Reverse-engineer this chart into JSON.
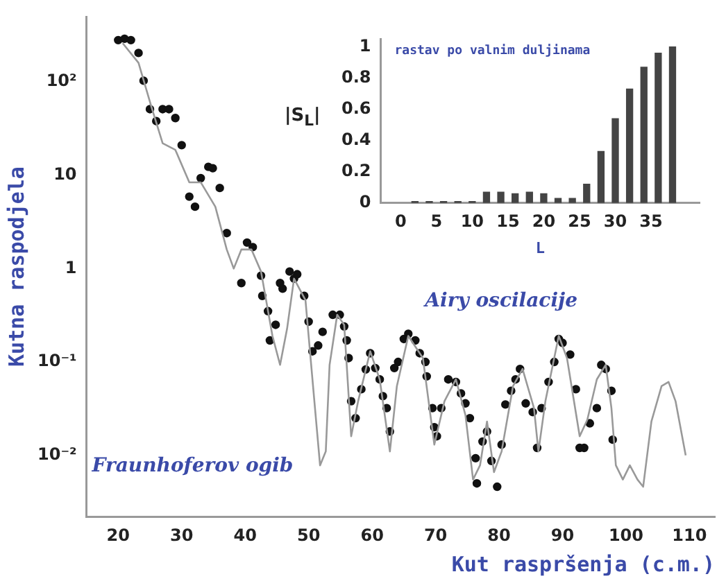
{
  "chart_data": [
    {
      "type": "scatter",
      "xlabel": "Kut raspršenja (c.m.)",
      "ylabel": "Kutna raspodjela",
      "log": "y",
      "grid": false,
      "legend": false,
      "xlim": [
        15,
        114
      ],
      "xticks": [
        20,
        30,
        40,
        50,
        60,
        70,
        80,
        90,
        100,
        110
      ],
      "ylim": [
        0.0022,
        500
      ],
      "yticks": [
        {
          "value": 100,
          "label": "10²"
        },
        {
          "value": 10,
          "label": "10"
        },
        {
          "value": 1,
          "label": "1"
        },
        {
          "value": 0.1,
          "label": "10⁻¹"
        },
        {
          "value": 0.01,
          "label": "10⁻²"
        }
      ],
      "annotations": [
        "Airy oscilacije",
        "Fraunhoferov ogib"
      ],
      "series": [
        {
          "type": "line",
          "color": "#999999",
          "marker": "none",
          "x": [
            20.7,
            23.2,
            25.2,
            27,
            29,
            31.2,
            33,
            35.3,
            37.1,
            38.2,
            39.4,
            41,
            42.5,
            44.3,
            45.5,
            46.6,
            47.7,
            49.5,
            51,
            51.8,
            52.7,
            53.3,
            54.5,
            55.6,
            56.7,
            57.8,
            59.7,
            61.2,
            62.8,
            63.9,
            65.7,
            68,
            69.8,
            71.4,
            73.2,
            74.7,
            75.9,
            77,
            78.1,
            79.2,
            80.4,
            82.2,
            83.7,
            85.5,
            86.2,
            87.3,
            89.4,
            90.7,
            92.7,
            93.9,
            95.4,
            96.8,
            97.7,
            98.4,
            99.5,
            100.6,
            101.8,
            102.7,
            104,
            105.6,
            106.7,
            107.8,
            109.4
          ],
          "values": [
            260,
            160,
            55,
            22,
            18.7,
            8.4,
            8.4,
            4.6,
            1.6,
            1,
            1.6,
            1.6,
            0.93,
            0.19,
            0.093,
            0.226,
            0.78,
            0.46,
            0.032,
            0.0078,
            0.011,
            0.093,
            0.32,
            0.25,
            0.016,
            0.038,
            0.13,
            0.065,
            0.011,
            0.055,
            0.19,
            0.11,
            0.013,
            0.038,
            0.065,
            0.027,
            0.0055,
            0.0078,
            0.023,
            0.0066,
            0.011,
            0.055,
            0.084,
            0.032,
            0.011,
            0.038,
            0.19,
            0.11,
            0.016,
            0.024,
            0.065,
            0.093,
            0.032,
            0.0078,
            0.0055,
            0.0078,
            0.0055,
            0.0046,
            0.023,
            0.055,
            0.061,
            0.038,
            0.01
          ]
        },
        {
          "type": "scatter",
          "color": "#111111",
          "marker": "circle",
          "x": [
            20,
            21,
            22,
            23.2,
            24,
            25,
            26,
            27,
            28,
            29,
            30,
            31.2,
            32.1,
            33,
            34.2,
            34.9,
            36,
            37.1,
            39.4,
            40.3,
            41.2,
            42.5,
            42.7,
            43.6,
            43.9,
            44.8,
            45.5,
            45.9,
            47,
            47.7,
            48.2,
            49.3,
            50,
            50.6,
            51.5,
            52.2,
            53.8,
            54.9,
            55.6,
            56,
            56.3,
            56.7,
            57.4,
            58.3,
            59,
            59.7,
            60.5,
            61.2,
            61.7,
            62.3,
            62.8,
            63.5,
            64.1,
            65,
            65.7,
            66.8,
            67.5,
            68.4,
            68.6,
            69.5,
            69.8,
            70.2,
            70.9,
            72,
            73.2,
            74,
            74.7,
            75.4,
            76.3,
            76.5,
            77.4,
            78.1,
            78.8,
            79.7,
            80.4,
            81,
            81.9,
            82.6,
            83.3,
            84.2,
            85.3,
            86,
            86.7,
            87.8,
            88.7,
            89.4,
            90,
            91.2,
            92.1,
            92.7,
            93.4,
            94.3,
            95.4,
            96.1,
            96.8,
            97.7,
            97.9
          ],
          "values": [
            280,
            290,
            280,
            204,
            103,
            51,
            38,
            51,
            51,
            41,
            21,
            5.9,
            4.6,
            9.3,
            12.3,
            11.9,
            7.3,
            2.4,
            0.7,
            1.9,
            1.7,
            0.84,
            0.51,
            0.35,
            0.17,
            0.25,
            0.7,
            0.61,
            0.93,
            0.78,
            0.87,
            0.51,
            0.27,
            0.13,
            0.15,
            0.21,
            0.32,
            0.32,
            0.24,
            0.17,
            0.11,
            0.038,
            0.025,
            0.051,
            0.083,
            0.124,
            0.086,
            0.065,
            0.043,
            0.032,
            0.018,
            0.086,
            0.1,
            0.176,
            0.2,
            0.17,
            0.124,
            0.1,
            0.07,
            0.032,
            0.02,
            0.016,
            0.032,
            0.065,
            0.061,
            0.046,
            0.036,
            0.025,
            0.0093,
            0.005,
            0.014,
            0.018,
            0.0087,
            0.0046,
            0.013,
            0.035,
            0.049,
            0.065,
            0.084,
            0.036,
            0.029,
            0.012,
            0.032,
            0.061,
            0.1,
            0.176,
            0.16,
            0.12,
            0.051,
            0.012,
            0.012,
            0.022,
            0.032,
            0.093,
            0.084,
            0.049,
            0.0147
          ]
        }
      ]
    },
    {
      "type": "bar",
      "xlabel": "L",
      "ylabel": "|S$_{L}$|",
      "grid": false,
      "legend": false,
      "annotations": [
        "rastav po valnim duljinama"
      ],
      "xlim": [
        0,
        39
      ],
      "xticks": [
        0,
        5,
        10,
        15,
        20,
        25,
        30,
        35
      ],
      "ylim": [
        0,
        1.05
      ],
      "yticks": [
        0,
        0.2,
        0.4,
        0.6,
        0.8,
        1
      ],
      "x": [
        2,
        4,
        6,
        8,
        10,
        12,
        14,
        16,
        18,
        20,
        22,
        24,
        26,
        28,
        30,
        32,
        34,
        36,
        38
      ],
      "series": [
        {
          "color": "#444444",
          "values": [
            0.01,
            0.01,
            0.01,
            0.01,
            0.01,
            0.07,
            0.07,
            0.06,
            0.07,
            0.06,
            0.03,
            0.03,
            0.12,
            0.33,
            0.54,
            0.73,
            0.87,
            0.96,
            1.0
          ]
        }
      ]
    }
  ]
}
